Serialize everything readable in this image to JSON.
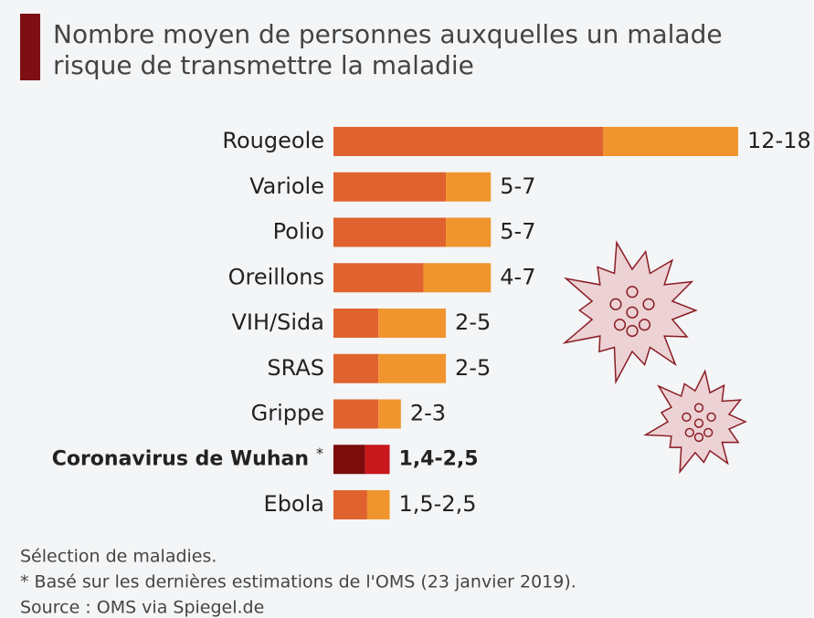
{
  "chart_data": {
    "type": "range-bar",
    "title": "Nombre moyen de personnes auxquelles un malade",
    "title_line2": "risque de transmettre la maladie",
    "categories": [
      "Rougeole",
      "Variole",
      "Polio",
      "Oreillons",
      "VIH/Sida",
      "SRAS",
      "Grippe",
      "Coronavirus de Wuhan",
      "Ebola"
    ],
    "low": [
      12,
      5,
      5,
      4,
      2,
      2,
      2,
      1.4,
      1.5
    ],
    "high": [
      18,
      7,
      7,
      7,
      5,
      5,
      3,
      2.5,
      2.5
    ],
    "range_labels": [
      "12-18",
      "5-7",
      "5-7",
      "4-7",
      "2-5",
      "2-5",
      "2-3",
      "1,4-2,5",
      "1,5-2,5"
    ],
    "low_colors": [
      "#e0622e",
      "#e0622e",
      "#e0622e",
      "#e0622e",
      "#e0622e",
      "#e0622e",
      "#e0622e",
      "#7a0c0c",
      "#e0622e"
    ],
    "high_colors": [
      "#f0952e",
      "#f0952e",
      "#f0952e",
      "#f0952e",
      "#f0952e",
      "#f0952e",
      "#f0952e",
      "#c8171d",
      "#f0952e"
    ],
    "highlighted": [
      false,
      false,
      false,
      false,
      false,
      false,
      false,
      true,
      false
    ],
    "footnote_mark": "*",
    "xlim": [
      0,
      18
    ],
    "notes": [
      "Sélection de maladies.",
      "* Basé sur les dernières estimations de l'OMS (23 janvier 2019).",
      "Source : OMS via Spiegel.de"
    ]
  }
}
